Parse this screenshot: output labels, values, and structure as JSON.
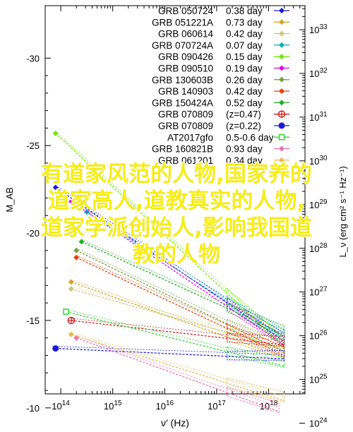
{
  "chart_data": {
    "type": "line",
    "xlabel": "ν′ (Hz)",
    "ylabel_left": "M_AB",
    "ylabel_right": "L_ν (erg cm² s⁻¹ Hz⁻¹)",
    "x_ticks": [
      "10^14",
      "10^15",
      "10^16",
      "10^17",
      "10^18"
    ],
    "x_tick_values": [
      14,
      15,
      16,
      17,
      18
    ],
    "y_ticks_left": [
      "-30",
      "-25",
      "-20",
      "-15",
      "-10"
    ],
    "y_ticks_left_values": [
      -30,
      -25,
      -20,
      -15,
      -10
    ],
    "y_ticks_right": [
      "10^33",
      "10^32",
      "10^31",
      "10^30",
      "10^29",
      "10^28",
      "10^27",
      "10^26",
      "10^25",
      "10^24"
    ],
    "y_ticks_right_values": [
      33,
      32,
      31,
      30,
      29,
      28,
      27,
      26,
      25,
      24
    ],
    "xlim_log10": [
      13.7,
      18.7
    ],
    "ylim_mag": [
      -10.8,
      -33.0
    ],
    "grid": false,
    "legend_position": "top-right",
    "series": [
      {
        "name": "GRB 050724",
        "value": "0.38 day",
        "color": "#1a1adc",
        "marker": "diamond",
        "from": [
          13.9,
          -22.6
        ],
        "to": [
          18.3,
          -13.8
        ]
      },
      {
        "name": "GRB 051221A",
        "value": "0.73 day",
        "color": "#d8a420",
        "marker": "diamond",
        "from": [
          14.2,
          -17.2
        ],
        "to": [
          18.3,
          -12.9
        ]
      },
      {
        "name": "GRB 060614",
        "value": "0.42 day",
        "color": "#c8c87a",
        "marker": "diamond",
        "from": [
          14.2,
          -16.8
        ],
        "to": [
          18.3,
          -13.4
        ]
      },
      {
        "name": "GRB 070724A",
        "value": "0.07 day",
        "color": "#00b4b4",
        "marker": "diamond",
        "from": [
          14.5,
          -21.2
        ],
        "to": [
          18.3,
          -14.0
        ]
      },
      {
        "name": "GRB 090426",
        "value": "0.15 day",
        "color": "#70e800",
        "marker": "diamond",
        "from": [
          13.9,
          -25.7
        ],
        "to": [
          18.3,
          -13.5
        ]
      },
      {
        "name": "GRB 090510",
        "value": "0.19 day",
        "color": "#e800e8",
        "marker": "diamond",
        "from": [
          14.2,
          -21.8
        ],
        "to": [
          18.3,
          -13.6
        ]
      },
      {
        "name": "GRB 130603B",
        "value": "0.26 day",
        "color": "#78a040",
        "marker": "diamond",
        "from": [
          14.3,
          -19.0
        ],
        "to": [
          18.3,
          -13.2
        ]
      },
      {
        "name": "GRB 140903",
        "value": "0.42 day",
        "color": "#e84000",
        "marker": "diamond",
        "from": [
          14.3,
          -18.6
        ],
        "to": [
          18.3,
          -13.0
        ]
      },
      {
        "name": "GRB 150424A",
        "value": "0.52 day",
        "color": "#20b020",
        "marker": "diamond",
        "from": [
          14.4,
          -19.5
        ],
        "to": [
          18.3,
          -14.2
        ]
      },
      {
        "name": "GRB 070809",
        "value": "(z=0.47)",
        "color": "#d02020",
        "marker": "circle-plus",
        "from": [
          14.2,
          -15.0
        ],
        "to": [
          18.3,
          -13.6
        ]
      },
      {
        "name": "GRB 070809",
        "value": "(z=0.22)",
        "color": "#1a1adc",
        "marker": "circle",
        "from": [
          13.9,
          -13.4
        ],
        "to": [
          18.3,
          -12.8
        ]
      },
      {
        "name": "AT2017gfo",
        "value": "0.5-0.6 day",
        "color": "#30d830",
        "marker": "square",
        "from": [
          14.1,
          -15.5
        ],
        "to": [
          18.3,
          -12.4
        ]
      },
      {
        "name": "GRB 160821B",
        "value": "0.93 day",
        "color": "#f070b0",
        "marker": "diamond",
        "from": [
          14.3,
          -14.0
        ],
        "to": [
          18.2,
          -9.8
        ]
      },
      {
        "name": "GRB 061201",
        "value": "0.34 day",
        "color": "#e8b850",
        "marker": "diamond",
        "from": [
          14.2,
          -14.2
        ],
        "to": [
          18.3,
          -10.4
        ]
      }
    ]
  },
  "overlay_text": [
    "有道家风范的人物,国家养的",
    "道家高人,道教真实的人物,",
    "道家学派创始人,影响我国道",
    "教的人物"
  ]
}
